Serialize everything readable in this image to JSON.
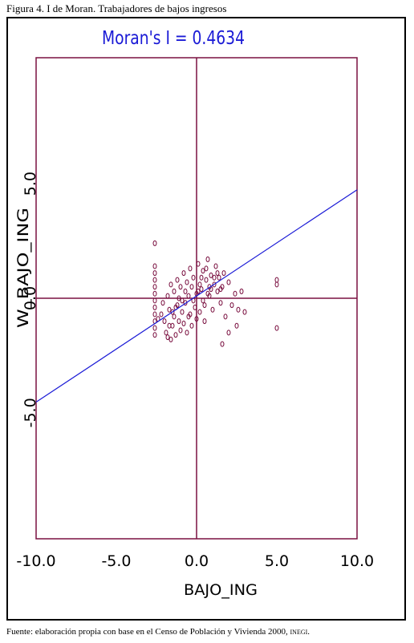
{
  "figure": {
    "caption": "Figura 4. I de Moran. Trabajadores de bajos ingresos",
    "source_prefix": "Fuente: elaboración propia con base en el Censo de Población y Vivienda 2000, ",
    "source_suffix": "INEGI",
    "source_end": "."
  },
  "colors": {
    "axis": "#7a1040",
    "points": "#7a1040",
    "regression": "#1a1ad6",
    "title": "#1a1ad6",
    "text": "#000000"
  },
  "chart_data": {
    "type": "scatter",
    "title": "Moran's I = 0.4634",
    "xlabel": "BAJO_ING",
    "ylabel": "W_BAJO_ING",
    "xlim": [
      -10,
      10
    ],
    "ylim": [
      -10.5,
      10.5
    ],
    "x_ticks": [
      -10,
      -5,
      0,
      5,
      10
    ],
    "x_tick_labels": [
      "-10.0",
      "-5.0",
      "0.0",
      "5.0",
      "10.0"
    ],
    "y_ticks": [
      -5,
      0,
      5
    ],
    "y_tick_labels": [
      "-5.0",
      "0.0",
      "5.0"
    ],
    "regression": {
      "slope": 0.4634,
      "intercept": 0.1
    },
    "grid": false,
    "points": [
      [
        -2.6,
        2.4
      ],
      [
        -2.6,
        1.4
      ],
      [
        -2.6,
        1.1
      ],
      [
        -2.6,
        0.8
      ],
      [
        -2.6,
        0.5
      ],
      [
        -2.6,
        0.2
      ],
      [
        -2.6,
        -0.1
      ],
      [
        -2.6,
        -0.4
      ],
      [
        -2.6,
        -0.7
      ],
      [
        -2.6,
        -1.0
      ],
      [
        -2.6,
        -1.3
      ],
      [
        -2.6,
        -1.6
      ],
      [
        -2.4,
        -0.9
      ],
      [
        -2.2,
        -0.7
      ],
      [
        -2.0,
        -1.0
      ],
      [
        -1.9,
        -1.5
      ],
      [
        -1.8,
        -1.7
      ],
      [
        -1.7,
        -0.5
      ],
      [
        -1.6,
        -1.8
      ],
      [
        -1.5,
        -1.2
      ],
      [
        -1.4,
        -0.8
      ],
      [
        -1.3,
        -1.6
      ],
      [
        -1.2,
        -0.3
      ],
      [
        -1.1,
        -1.0
      ],
      [
        -1.0,
        -1.4
      ],
      [
        -0.9,
        -0.6
      ],
      [
        -0.8,
        -1.1
      ],
      [
        -0.7,
        -0.2
      ],
      [
        -0.6,
        -1.5
      ],
      [
        -0.5,
        -0.8
      ],
      [
        -1.6,
        0.6
      ],
      [
        -1.4,
        0.3
      ],
      [
        -1.2,
        0.8
      ],
      [
        -1.0,
        0.5
      ],
      [
        -0.8,
        1.1
      ],
      [
        -0.6,
        0.7
      ],
      [
        -0.4,
        1.3
      ],
      [
        -0.2,
        0.9
      ],
      [
        -0.1,
        -0.4
      ],
      [
        0.0,
        0.2
      ],
      [
        0.1,
        1.5
      ],
      [
        0.2,
        -0.6
      ],
      [
        0.3,
        0.4
      ],
      [
        0.4,
        1.2
      ],
      [
        0.5,
        -0.3
      ],
      [
        0.6,
        0.8
      ],
      [
        0.7,
        1.7
      ],
      [
        0.8,
        0.1
      ],
      [
        0.9,
        1.0
      ],
      [
        1.0,
        -0.5
      ],
      [
        1.1,
        0.6
      ],
      [
        1.2,
        1.4
      ],
      [
        1.3,
        0.3
      ],
      [
        1.4,
        0.9
      ],
      [
        1.5,
        -0.2
      ],
      [
        1.6,
        0.5
      ],
      [
        1.7,
        1.1
      ],
      [
        1.8,
        -0.8
      ],
      [
        2.0,
        0.7
      ],
      [
        2.2,
        -0.3
      ],
      [
        2.4,
        0.2
      ],
      [
        2.6,
        -0.5
      ],
      [
        2.8,
        0.3
      ],
      [
        3.0,
        -0.6
      ],
      [
        2.5,
        -1.2
      ],
      [
        2.0,
        -1.5
      ],
      [
        1.6,
        -2.0
      ],
      [
        -0.3,
        -1.2
      ],
      [
        0.5,
        -1.0
      ],
      [
        -1.8,
        0.1
      ],
      [
        -2.1,
        -0.2
      ],
      [
        -1.5,
        -0.6
      ],
      [
        -0.5,
        0.1
      ],
      [
        -0.3,
        0.5
      ],
      [
        0.3,
        0.9
      ],
      [
        0.6,
        1.3
      ],
      [
        0.9,
        0.4
      ],
      [
        1.3,
        1.1
      ],
      [
        -0.2,
        -0.1
      ],
      [
        0.1,
        0.3
      ],
      [
        0.4,
        -0.1
      ],
      [
        0.8,
        0.5
      ],
      [
        -0.7,
        0.3
      ],
      [
        -1.1,
        0.0
      ],
      [
        5.0,
        0.8
      ],
      [
        5.0,
        0.6
      ],
      [
        5.0,
        -1.3
      ],
      [
        -1.7,
        -1.2
      ],
      [
        -1.3,
        -0.4
      ],
      [
        -0.9,
        -0.1
      ],
      [
        0.2,
        0.6
      ],
      [
        0.7,
        0.2
      ],
      [
        1.1,
        0.9
      ],
      [
        1.5,
        0.4
      ],
      [
        -0.4,
        -0.7
      ],
      [
        0.0,
        -0.9
      ]
    ]
  }
}
